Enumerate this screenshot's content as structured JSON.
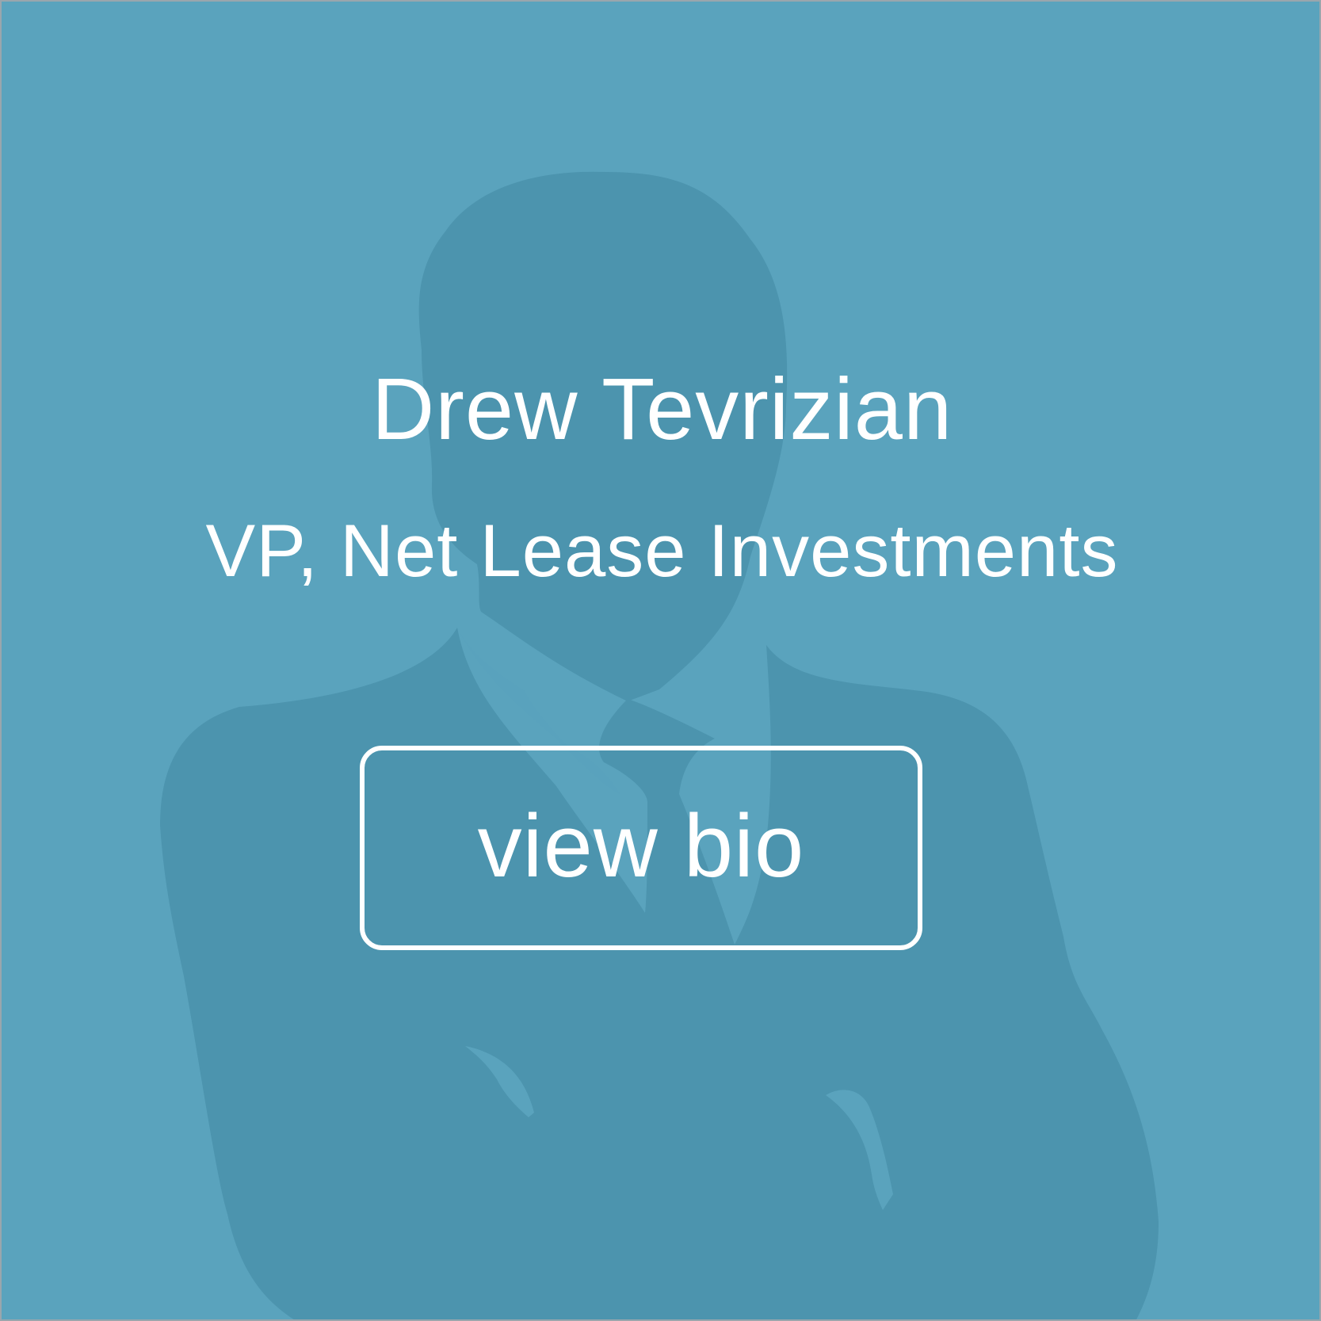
{
  "profile": {
    "name": "Drew Tevrizian",
    "title": "VP, Net Lease Investments",
    "button_label": "view bio"
  },
  "colors": {
    "background": "#5aa3bd",
    "silhouette": "#4c94ae",
    "text": "#ffffff",
    "border": "#9aa6ad"
  },
  "icons": {
    "placeholder": "person-silhouette-icon"
  }
}
